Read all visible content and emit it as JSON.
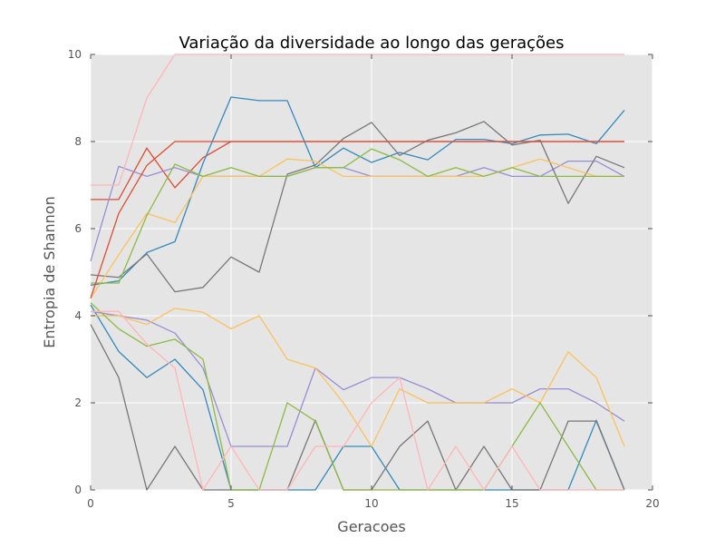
{
  "chart_data": {
    "type": "line",
    "title": "Variação da diversidade ao longo das gerações",
    "xlabel": "Geracoes",
    "ylabel": "Entropia de Shannon",
    "xlim": [
      0,
      20
    ],
    "ylim": [
      0,
      10
    ],
    "xticks": [
      "0",
      "5",
      "10",
      "15",
      "20"
    ],
    "yticks": [
      "0",
      "2",
      "4",
      "6",
      "8",
      "10"
    ],
    "grid": true,
    "background": "#e5e5e5",
    "x": [
      0,
      1,
      2,
      3,
      4,
      5,
      6,
      7,
      8,
      9,
      10,
      11,
      12,
      13,
      14,
      15,
      16,
      17,
      18,
      19
    ],
    "series": [
      {
        "color": "#e24a33",
        "values": [
          6.67,
          6.67,
          7.85,
          6.94,
          7.63,
          8.0,
          8.0,
          8.0,
          8.0,
          8.0,
          8.0,
          8.0,
          8.0,
          8.0,
          8.0,
          8.0,
          8.0,
          8.0,
          8.0,
          8.0
        ]
      },
      {
        "color": "#348abd",
        "values": [
          4.7,
          4.8,
          5.45,
          5.7,
          7.5,
          9.02,
          8.94,
          8.94,
          7.4,
          7.85,
          7.52,
          7.75,
          7.58,
          8.05,
          8.05,
          7.95,
          8.15,
          8.17,
          7.95,
          8.72
        ]
      },
      {
        "color": "#988ed5",
        "values": [
          5.25,
          7.43,
          7.2,
          7.4,
          7.2,
          7.2,
          7.2,
          7.2,
          7.4,
          7.4,
          7.2,
          7.2,
          7.2,
          7.2,
          7.4,
          7.2,
          7.2,
          7.55,
          7.55,
          7.2
        ]
      },
      {
        "color": "#777777",
        "values": [
          4.94,
          4.88,
          5.42,
          4.55,
          4.65,
          5.35,
          5.0,
          7.25,
          7.46,
          8.07,
          8.44,
          7.68,
          8.03,
          8.2,
          8.46,
          7.92,
          8.03,
          6.58,
          7.66,
          7.4
        ]
      },
      {
        "color": "#fbc15e",
        "values": [
          4.4,
          5.4,
          6.35,
          6.14,
          7.2,
          7.2,
          7.2,
          7.6,
          7.55,
          7.2,
          7.2,
          7.2,
          7.2,
          7.2,
          7.2,
          7.4,
          7.6,
          7.4,
          7.2,
          7.2
        ]
      },
      {
        "color": "#8eba42",
        "values": [
          4.75,
          4.75,
          6.3,
          7.48,
          7.2,
          7.4,
          7.2,
          7.2,
          7.4,
          7.4,
          7.83,
          7.58,
          7.2,
          7.4,
          7.2,
          7.4,
          7.2,
          7.2,
          7.2,
          7.2
        ]
      },
      {
        "color": "#ffb5b8",
        "values": [
          7.0,
          7.0,
          9.0,
          10.0,
          10.0,
          10.0,
          10.0,
          10.0,
          10.0,
          10.0,
          10.0,
          10.0,
          10.0,
          10.0,
          10.0,
          10.0,
          10.0,
          10.0,
          10.0,
          10.0
        ]
      },
      {
        "color": "#e24a33",
        "values": [
          4.4,
          6.35,
          7.45,
          8.0,
          8.0,
          8.0,
          8.0,
          8.0,
          8.0,
          8.0,
          8.0,
          8.0,
          8.0,
          8.0,
          8.0,
          8.0,
          8.0,
          8.0,
          8.0,
          8.0
        ]
      },
      {
        "color": "#348abd",
        "values": [
          4.25,
          3.18,
          2.58,
          3.0,
          2.3,
          0,
          0,
          0,
          0,
          1.0,
          1.0,
          0,
          0,
          0,
          0,
          0,
          0,
          0,
          1.6,
          0
        ]
      },
      {
        "color": "#988ed5",
        "values": [
          4.1,
          4.0,
          3.9,
          3.6,
          2.8,
          1.0,
          1.0,
          1.0,
          2.8,
          2.3,
          2.58,
          2.58,
          2.32,
          2.0,
          2.0,
          2.0,
          2.32,
          2.32,
          2.0,
          1.58
        ]
      },
      {
        "color": "#777777",
        "values": [
          3.8,
          2.58,
          0,
          1.0,
          0,
          0,
          0,
          0,
          1.6,
          0,
          0,
          1.0,
          1.58,
          0,
          1.0,
          0,
          0,
          1.58,
          1.58,
          0
        ]
      },
      {
        "color": "#fbc15e",
        "values": [
          4.0,
          4.0,
          3.8,
          4.17,
          4.08,
          3.7,
          4.0,
          3.0,
          2.8,
          2.0,
          1.0,
          2.32,
          2.0,
          2.0,
          2.0,
          2.32,
          2.0,
          3.17,
          2.58,
          1.0
        ]
      },
      {
        "color": "#8eba42",
        "values": [
          4.3,
          3.7,
          3.3,
          3.46,
          3.0,
          0,
          0,
          2.0,
          1.58,
          0,
          0,
          0,
          0,
          0,
          0,
          1.0,
          2.0,
          1.0,
          0,
          0
        ]
      },
      {
        "color": "#ffb5b8",
        "values": [
          4.1,
          4.1,
          3.35,
          2.8,
          0,
          1.0,
          0,
          0,
          1.0,
          1.0,
          2.0,
          2.58,
          0,
          1.0,
          0,
          1.0,
          0,
          0,
          0,
          0
        ]
      }
    ]
  }
}
